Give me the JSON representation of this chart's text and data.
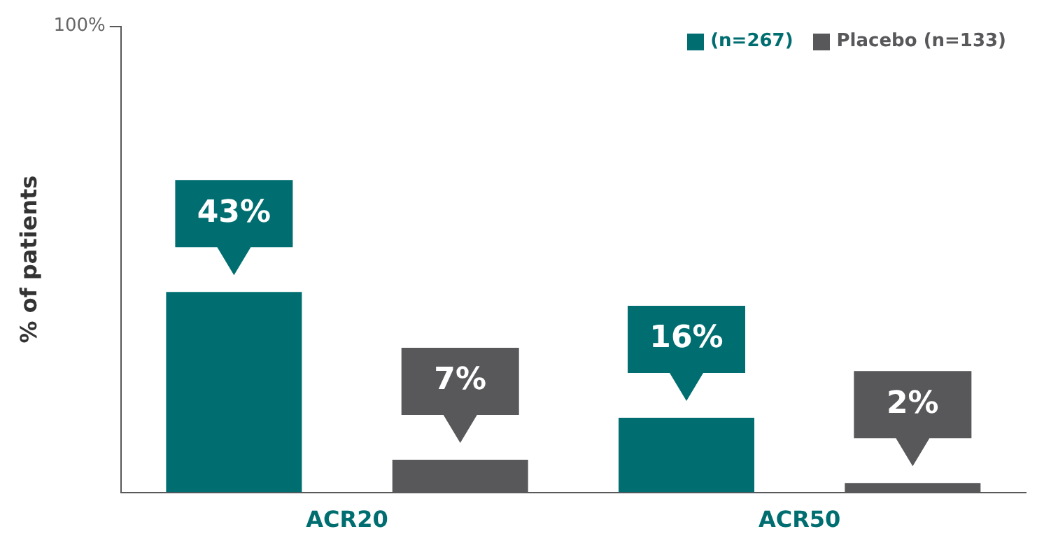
{
  "chart_data": {
    "type": "bar",
    "ylabel": "% of patients",
    "categories": [
      "ACR20",
      "ACR50"
    ],
    "series": [
      {
        "name": "(n=267)",
        "color": "#006e70",
        "values": [
          43,
          16
        ],
        "value_labels": [
          "43%",
          "16%"
        ]
      },
      {
        "name": "Placebo (n=133)",
        "color": "#58585b",
        "values": [
          7,
          2
        ],
        "value_labels": [
          "7%",
          "2%"
        ]
      }
    ],
    "ylim": [
      0,
      100
    ],
    "yticks": [
      {
        "value": 100,
        "label": "100%"
      }
    ],
    "grid": false,
    "legend": "top right"
  }
}
